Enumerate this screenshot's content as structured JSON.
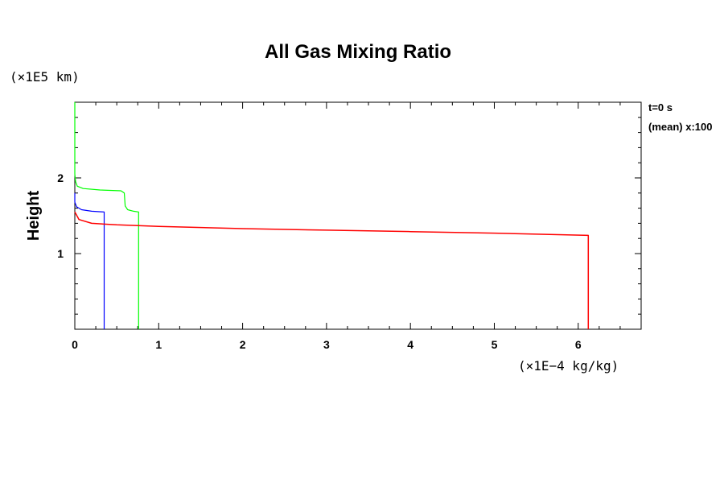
{
  "chart_data": {
    "type": "line",
    "title": "All Gas Mixing Ratio",
    "xlabel": "",
    "ylabel": "Height",
    "x_unit": "(×1E−4 kg/kg)",
    "y_unit": "(×1E5 km)",
    "xlim": [
      0,
      6.75
    ],
    "ylim": [
      0,
      3.0
    ],
    "x_ticks": [
      "0",
      "1",
      "2",
      "3",
      "4",
      "5",
      "6"
    ],
    "y_ticks": [
      "1",
      "2"
    ],
    "annotations": [
      "t=0 s",
      "(mean) x:100"
    ],
    "colors": {
      "blue": "#0000ff",
      "green": "#00ff00",
      "red": "#ff0000"
    },
    "series": [
      {
        "color": "#0000ff",
        "points": [
          [
            0.35,
            0.0
          ],
          [
            0.35,
            1.55
          ],
          [
            0.2,
            1.56
          ],
          [
            0.08,
            1.58
          ],
          [
            0.02,
            1.62
          ],
          [
            0.0,
            1.68
          ],
          [
            0.0,
            1.8
          ]
        ]
      },
      {
        "color": "#00ff00",
        "points": [
          [
            0.76,
            0.0
          ],
          [
            0.76,
            1.55
          ],
          [
            0.7,
            1.56
          ],
          [
            0.63,
            1.58
          ],
          [
            0.6,
            1.63
          ],
          [
            0.59,
            1.8
          ],
          [
            0.55,
            1.83
          ],
          [
            0.3,
            1.84
          ],
          [
            0.1,
            1.86
          ],
          [
            0.03,
            1.89
          ],
          [
            0.01,
            1.95
          ],
          [
            0.0,
            2.05
          ],
          [
            0.0,
            3.0
          ]
        ]
      },
      {
        "color": "#ff0000",
        "points": [
          [
            6.12,
            0.0
          ],
          [
            6.12,
            1.24
          ],
          [
            5.0,
            1.27
          ],
          [
            4.0,
            1.29
          ],
          [
            3.0,
            1.31
          ],
          [
            2.0,
            1.33
          ],
          [
            1.0,
            1.36
          ],
          [
            0.5,
            1.38
          ],
          [
            0.2,
            1.4
          ],
          [
            0.05,
            1.45
          ],
          [
            0.0,
            1.55
          ]
        ]
      }
    ]
  }
}
